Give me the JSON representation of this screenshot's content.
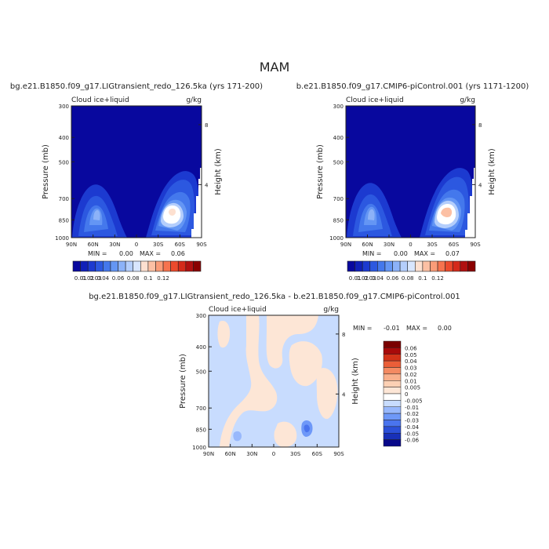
{
  "page_title": "MAM",
  "colors": {
    "blue_scale": [
      "#08089e",
      "#1020b8",
      "#1c3ad0",
      "#2c58e0",
      "#4478ec",
      "#6496f4",
      "#8cb2f8",
      "#b4cefc",
      "#d8e6fe",
      "#ffffff"
    ],
    "red_scale": [
      "#fde0d0",
      "#fcc0a4",
      "#fa9c78",
      "#f6734e",
      "#ec4a2c",
      "#d42a1a",
      "#b01010",
      "#8a0000"
    ],
    "diff_neg": [
      "#08088a",
      "#1830b8",
      "#2c50d8",
      "#4a74ee",
      "#6e98f8",
      "#98b8fc",
      "#c8dcfe"
    ],
    "diff_pos": [
      "#fde6d6",
      "#fcd0b4",
      "#f9b08c",
      "#f48a62",
      "#ea5e38",
      "#d23218",
      "#a80a0a",
      "#7a0000"
    ],
    "blank": "#ffffff"
  },
  "chart_data": [
    {
      "type": "contour",
      "title": "bg.e21.B1850.f09_g17.LIGtransient_redo_126.5ka (yrs 171-200)",
      "variable": "Cloud ice+liquid",
      "units": "g/kg",
      "ylabel": "Pressure (mb)",
      "right_label": "Height (km)",
      "x_ticks": [
        "90N",
        "60N",
        "30N",
        "0",
        "30S",
        "60S",
        "90S"
      ],
      "y_ticks": [
        "300",
        "400",
        "500",
        "700",
        "850",
        "1000"
      ],
      "right_ticks": [
        "8",
        "4"
      ],
      "min_label": "MIN =",
      "min_value": "0.00",
      "max_label": "MAX =",
      "max_value": "0.06",
      "colorbar_labels": [
        "0.01",
        "0.02",
        "0.03",
        "0.04",
        "0.06",
        "0.08",
        "0.1",
        "0.12"
      ]
    },
    {
      "type": "contour",
      "title": "b.e21.B1850.f09_g17.CMIP6-piControl.001 (yrs 1171-1200)",
      "variable": "Cloud ice+liquid",
      "units": "g/kg",
      "ylabel": "Pressure (mb)",
      "right_label": "Height (km)",
      "x_ticks": [
        "90N",
        "60N",
        "30N",
        "0",
        "30S",
        "60S",
        "90S"
      ],
      "y_ticks": [
        "300",
        "400",
        "500",
        "700",
        "850",
        "1000"
      ],
      "right_ticks": [
        "8",
        "4"
      ],
      "min_label": "MIN =",
      "min_value": "0.00",
      "max_label": "MAX =",
      "max_value": "0.07",
      "colorbar_labels": [
        "0.01",
        "0.02",
        "0.03",
        "0.04",
        "0.06",
        "0.08",
        "0.1",
        "0.12"
      ]
    },
    {
      "type": "contour",
      "title": "bg.e21.B1850.f09_g17.LIGtransient_redo_126.5ka - b.e21.B1850.f09_g17.CMIP6-piControl.001",
      "variable": "Cloud ice+liquid",
      "units": "g/kg",
      "ylabel": "Pressure (mb)",
      "right_label": "Height (km)",
      "x_ticks": [
        "90N",
        "60N",
        "30N",
        "0",
        "30S",
        "60S",
        "90S"
      ],
      "y_ticks": [
        "300",
        "400",
        "500",
        "700",
        "850",
        "1000"
      ],
      "right_ticks": [
        "8",
        "4"
      ],
      "min_label": "MIN =",
      "min_value": "-0.01",
      "max_label": "MAX =",
      "max_value": "0.00",
      "colorbar_labels": [
        "0.06",
        "0.05",
        "0.04",
        "0.03",
        "0.02",
        "0.01",
        "0.005",
        "0",
        "-0.005",
        "-0.01",
        "-0.02",
        "-0.03",
        "-0.04",
        "-0.05",
        "-0.06"
      ]
    }
  ]
}
